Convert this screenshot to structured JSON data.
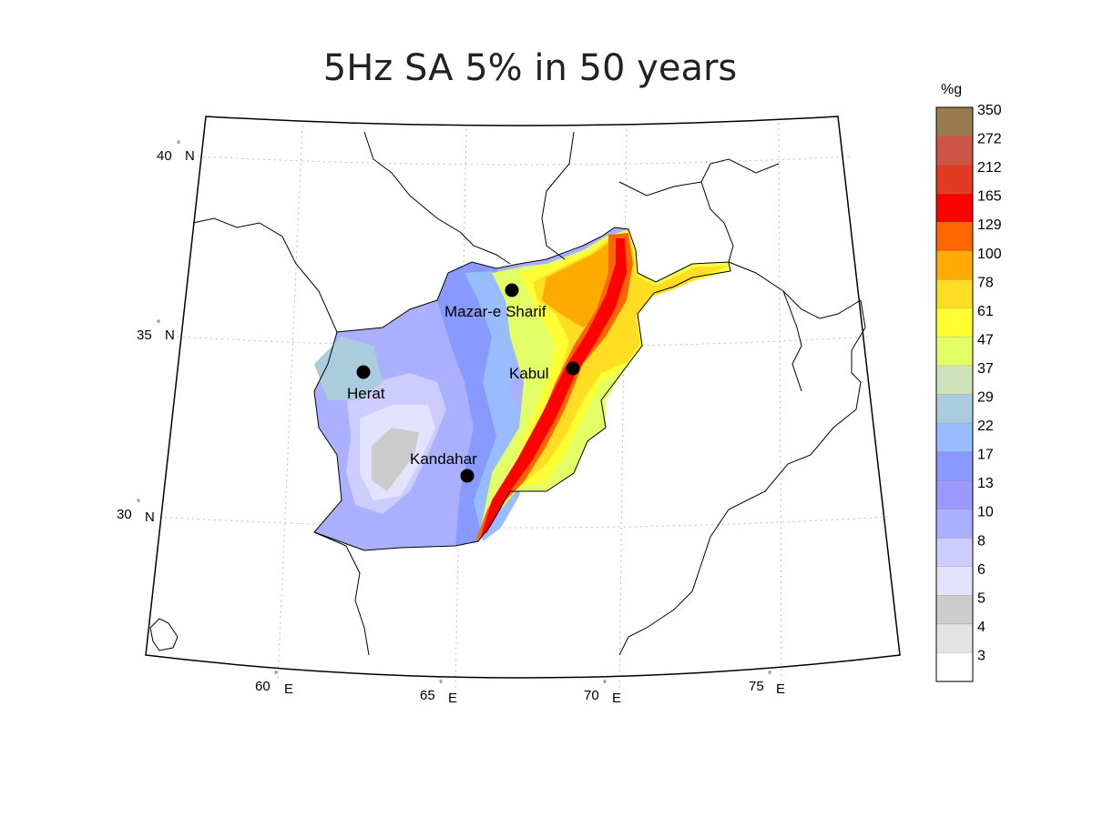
{
  "title": "5Hz SA 5% in 50 years",
  "colorbar": {
    "unit": "%g",
    "levels": [
      {
        "label": "350",
        "color": "#9a7b4f"
      },
      {
        "label": "272",
        "color": "#cc5544"
      },
      {
        "label": "212",
        "color": "#e33a22"
      },
      {
        "label": "165",
        "color": "#ff0000"
      },
      {
        "label": "129",
        "color": "#ff6600"
      },
      {
        "label": "100",
        "color": "#ffaa00"
      },
      {
        "label": "78",
        "color": "#ffdd22"
      },
      {
        "label": "61",
        "color": "#ffff33"
      },
      {
        "label": "47",
        "color": "#e3ff66"
      },
      {
        "label": "37",
        "color": "#cce3bb"
      },
      {
        "label": "29",
        "color": "#aaccdd"
      },
      {
        "label": "22",
        "color": "#99bbff"
      },
      {
        "label": "17",
        "color": "#8899ff"
      },
      {
        "label": "13",
        "color": "#9999ff"
      },
      {
        "label": "10",
        "color": "#aab0ff"
      },
      {
        "label": "8",
        "color": "#ccccff"
      },
      {
        "label": "6",
        "color": "#e3e3ff"
      },
      {
        "label": "5",
        "color": "#cccccc"
      },
      {
        "label": "4",
        "color": "#e3e3e3"
      },
      {
        "label": "3",
        "color": "#ffffff"
      }
    ]
  },
  "axes": {
    "lat_labels": [
      {
        "deg": "40",
        "hemi": "N"
      },
      {
        "deg": "35",
        "hemi": "N"
      },
      {
        "deg": "30",
        "hemi": "N"
      }
    ],
    "lon_labels": [
      {
        "deg": "60",
        "hemi": "E"
      },
      {
        "deg": "65",
        "hemi": "E"
      },
      {
        "deg": "70",
        "hemi": "E"
      },
      {
        "deg": "75",
        "hemi": "E"
      }
    ],
    "degree_symbol": "°"
  },
  "cities": [
    {
      "name": "Mazar-e Sharif"
    },
    {
      "name": "Herat"
    },
    {
      "name": "Kabul"
    },
    {
      "name": "Kandahar"
    }
  ]
}
